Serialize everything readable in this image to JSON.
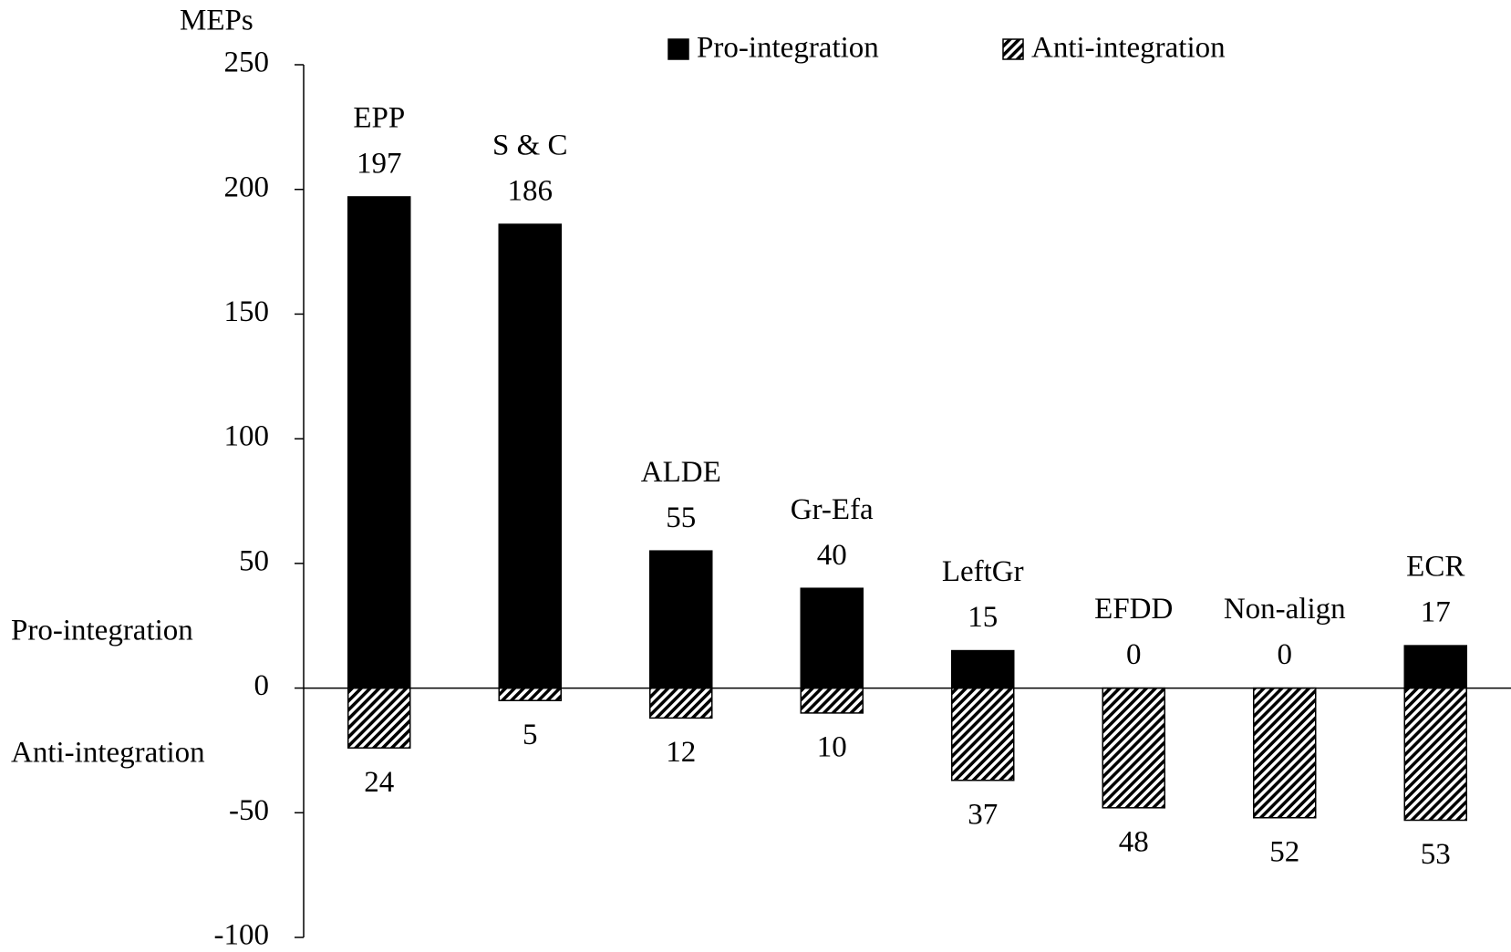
{
  "chart_data": {
    "type": "diverging_bar",
    "y_axis_label": "MEPs",
    "annotations": [
      "Pro-integration",
      "Anti-integration"
    ],
    "categories": [
      "EPP",
      "S & C",
      "ALDE",
      "Gr-Efa",
      "LeftGr",
      "EFDD",
      "Non-align",
      "ECR"
    ],
    "series": [
      {
        "name": "Pro-integration",
        "color": "#000000",
        "pattern": "solid",
        "values": [
          197,
          186,
          55,
          40,
          15,
          0,
          0,
          17
        ]
      },
      {
        "name": "Anti-integration",
        "color": "#000000",
        "pattern": "hatch",
        "values": [
          -24,
          -5,
          -12,
          -10,
          -37,
          -48,
          -52,
          -53
        ],
        "value_labels": [
          "24",
          "5",
          "12",
          "10",
          "37",
          "48",
          "52",
          "53"
        ]
      }
    ],
    "ylim": [
      -100,
      250
    ],
    "yticks": [
      -100,
      -50,
      0,
      50,
      100,
      150,
      200,
      250
    ],
    "legend": "top"
  }
}
